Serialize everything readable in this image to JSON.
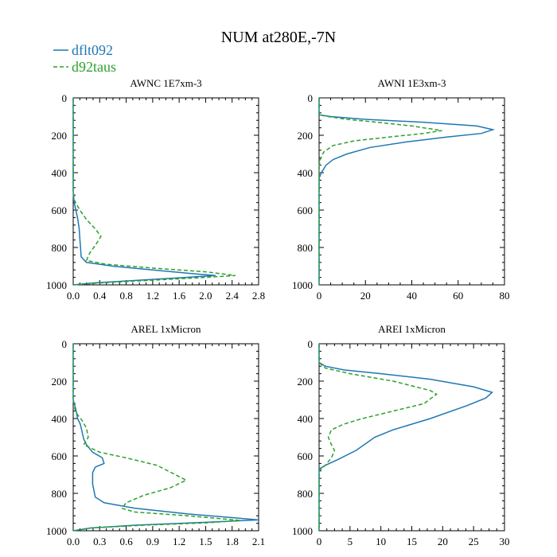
{
  "figure": {
    "title": "NUM at280E,-7N",
    "legend": [
      {
        "label": "dflt092",
        "color": "#1f77b4",
        "dash": "solid"
      },
      {
        "label": "d92taus",
        "color": "#2ca02c",
        "dash": "dashed"
      }
    ],
    "legend_placement": "top-left"
  },
  "chart_data": [
    {
      "type": "line",
      "title": "AWNC  1E7xm-3",
      "xlim": [
        0,
        2.8
      ],
      "ylim": [
        1000,
        0
      ],
      "xticks": [
        "0.0",
        "0.4",
        "0.8",
        "1.2",
        "1.6",
        "2.0",
        "2.4",
        "2.8"
      ],
      "yticks": [
        "0",
        "200",
        "400",
        "600",
        "800",
        "1000"
      ],
      "series": [
        {
          "name": "dflt092",
          "points": [
            [
              0,
              0
            ],
            [
              0,
              100
            ],
            [
              0,
              200
            ],
            [
              0,
              300
            ],
            [
              0,
              400
            ],
            [
              0,
              500
            ],
            [
              0.01,
              550
            ],
            [
              0.04,
              600
            ],
            [
              0.07,
              650
            ],
            [
              0.09,
              700
            ],
            [
              0.1,
              750
            ],
            [
              0.11,
              800
            ],
            [
              0.12,
              850
            ],
            [
              0.2,
              880
            ],
            [
              0.6,
              900
            ],
            [
              1.2,
              920
            ],
            [
              1.8,
              940
            ],
            [
              2.15,
              950
            ],
            [
              1.7,
              960
            ],
            [
              1.0,
              975
            ],
            [
              0.3,
              990
            ],
            [
              0,
              1000
            ]
          ]
        },
        {
          "name": "d92taus",
          "points": [
            [
              0,
              0
            ],
            [
              0,
              100
            ],
            [
              0,
              200
            ],
            [
              0,
              300
            ],
            [
              0,
              400
            ],
            [
              0,
              500
            ],
            [
              0.02,
              550
            ],
            [
              0.1,
              600
            ],
            [
              0.2,
              650
            ],
            [
              0.33,
              700
            ],
            [
              0.42,
              740
            ],
            [
              0.35,
              780
            ],
            [
              0.25,
              830
            ],
            [
              0.2,
              870
            ],
            [
              0.5,
              890
            ],
            [
              1.2,
              910
            ],
            [
              2.0,
              930
            ],
            [
              2.45,
              950
            ],
            [
              2.0,
              960
            ],
            [
              1.2,
              975
            ],
            [
              0.4,
              990
            ],
            [
              0,
              1000
            ]
          ]
        }
      ]
    },
    {
      "type": "line",
      "title": "AWNI  1E3xm-3",
      "xlim": [
        0,
        80
      ],
      "ylim": [
        1000,
        0
      ],
      "xticks": [
        "0",
        "20",
        "40",
        "60",
        "80"
      ],
      "yticks": [
        "0",
        "200",
        "400",
        "600",
        "800",
        "1000"
      ],
      "series": [
        {
          "name": "dflt092",
          "points": [
            [
              0,
              0
            ],
            [
              0,
              90
            ],
            [
              5,
              100
            ],
            [
              20,
              115
            ],
            [
              45,
              130
            ],
            [
              68,
              150
            ],
            [
              75,
              170
            ],
            [
              70,
              190
            ],
            [
              55,
              210
            ],
            [
              38,
              235
            ],
            [
              22,
              265
            ],
            [
              12,
              300
            ],
            [
              6,
              330
            ],
            [
              3,
              360
            ],
            [
              1,
              400
            ],
            [
              0,
              430
            ],
            [
              0,
              500
            ],
            [
              0,
              700
            ],
            [
              0,
              1000
            ]
          ]
        },
        {
          "name": "d92taus",
          "points": [
            [
              0,
              0
            ],
            [
              0,
              90
            ],
            [
              4,
              100
            ],
            [
              12,
              115
            ],
            [
              25,
              130
            ],
            [
              40,
              150
            ],
            [
              53,
              175
            ],
            [
              45,
              190
            ],
            [
              30,
              210
            ],
            [
              15,
              230
            ],
            [
              6,
              255
            ],
            [
              2,
              290
            ],
            [
              0.5,
              330
            ],
            [
              0,
              370
            ],
            [
              0,
              500
            ],
            [
              0,
              700
            ],
            [
              0,
              1000
            ]
          ]
        }
      ]
    },
    {
      "type": "line",
      "title": "AREL  1xMicron",
      "xlim": [
        0,
        2.1
      ],
      "ylim": [
        1000,
        0
      ],
      "xticks": [
        "0.0",
        "0.3",
        "0.6",
        "0.9",
        "1.2",
        "1.5",
        "1.8",
        "2.1"
      ],
      "yticks": [
        "0",
        "200",
        "400",
        "600",
        "800",
        "1000"
      ],
      "series": [
        {
          "name": "dflt092",
          "points": [
            [
              0,
              0
            ],
            [
              0,
              300
            ],
            [
              0.03,
              350
            ],
            [
              0.05,
              400
            ],
            [
              0.08,
              430
            ],
            [
              0.1,
              470
            ],
            [
              0.12,
              510
            ],
            [
              0.15,
              540
            ],
            [
              0.22,
              580
            ],
            [
              0.33,
              610
            ],
            [
              0.35,
              640
            ],
            [
              0.25,
              660
            ],
            [
              0.22,
              690
            ],
            [
              0.22,
              750
            ],
            [
              0.25,
              820
            ],
            [
              0.35,
              850
            ],
            [
              0.7,
              880
            ],
            [
              1.3,
              910
            ],
            [
              1.8,
              930
            ],
            [
              2.1,
              942
            ],
            [
              1.5,
              955
            ],
            [
              0.7,
              970
            ],
            [
              0.2,
              985
            ],
            [
              0,
              1000
            ]
          ]
        },
        {
          "name": "d92taus",
          "points": [
            [
              0,
              0
            ],
            [
              0,
              300
            ],
            [
              0.02,
              350
            ],
            [
              0.05,
              380
            ],
            [
              0.1,
              410
            ],
            [
              0.15,
              450
            ],
            [
              0.17,
              500
            ],
            [
              0.12,
              540
            ],
            [
              0.3,
              580
            ],
            [
              0.6,
              610
            ],
            [
              0.95,
              650
            ],
            [
              1.28,
              730
            ],
            [
              1.1,
              770
            ],
            [
              0.8,
              810
            ],
            [
              0.6,
              850
            ],
            [
              0.55,
              880
            ],
            [
              0.7,
              900
            ],
            [
              1.3,
              920
            ],
            [
              1.9,
              945
            ],
            [
              1.5,
              958
            ],
            [
              0.8,
              970
            ],
            [
              0.2,
              985
            ],
            [
              0,
              1000
            ]
          ]
        }
      ]
    },
    {
      "type": "line",
      "title": "AREI  1xMicron",
      "xlim": [
        0,
        30
      ],
      "ylim": [
        1000,
        0
      ],
      "xticks": [
        "0",
        "5",
        "10",
        "15",
        "20",
        "25",
        "30"
      ],
      "yticks": [
        "0",
        "200",
        "400",
        "600",
        "800",
        "1000"
      ],
      "series": [
        {
          "name": "dflt092",
          "points": [
            [
              0,
              0
            ],
            [
              0,
              100
            ],
            [
              1,
              120
            ],
            [
              4,
              140
            ],
            [
              10,
              160
            ],
            [
              18,
              190
            ],
            [
              25,
              230
            ],
            [
              28,
              260
            ],
            [
              27,
              290
            ],
            [
              24,
              330
            ],
            [
              18,
              400
            ],
            [
              12,
              460
            ],
            [
              9,
              500
            ],
            [
              6,
              570
            ],
            [
              3,
              620
            ],
            [
              1,
              650
            ],
            [
              0,
              670
            ],
            [
              0,
              800
            ],
            [
              0,
              1000
            ]
          ]
        },
        {
          "name": "d92taus",
          "points": [
            [
              0,
              0
            ],
            [
              0,
              100
            ],
            [
              1,
              130
            ],
            [
              5,
              160
            ],
            [
              12,
              200
            ],
            [
              18,
              250
            ],
            [
              19,
              270
            ],
            [
              17,
              320
            ],
            [
              12,
              360
            ],
            [
              7,
              400
            ],
            [
              4,
              430
            ],
            [
              2,
              460
            ],
            [
              1.5,
              500
            ],
            [
              2,
              540
            ],
            [
              2.5,
              570
            ],
            [
              2,
              610
            ],
            [
              1,
              650
            ],
            [
              0,
              680
            ],
            [
              0,
              800
            ],
            [
              0,
              1000
            ]
          ]
        }
      ]
    }
  ]
}
